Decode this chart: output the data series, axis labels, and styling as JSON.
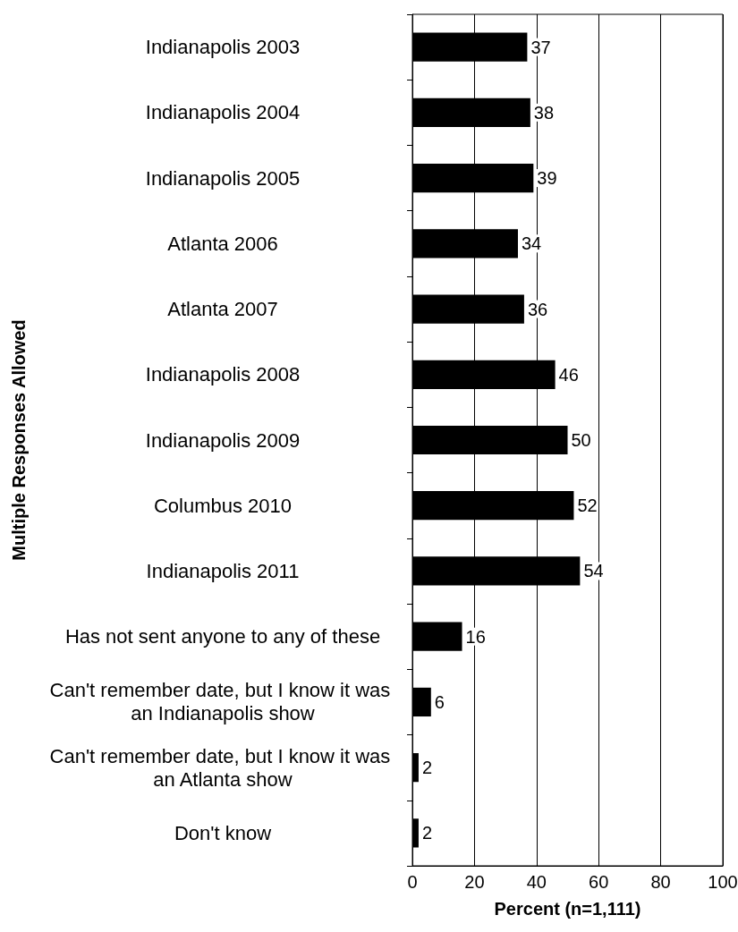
{
  "chart_data": {
    "type": "bar",
    "orientation": "horizontal",
    "xlabel": "Percent (n=1,111)",
    "ylabel": "Multiple Responses Allowed",
    "categories": [
      "Indianapolis 2003",
      "Indianapolis 2004",
      "Indianapolis 2005",
      "Atlanta 2006",
      "Atlanta 2007",
      "Indianapolis 2008",
      "Indianapolis 2009",
      "Columbus 2010",
      "Indianapolis 2011",
      "Has not sent anyone to any of these",
      "Can't remember date, but I know it was an Indianapolis show",
      "Can't remember date, but I know it was an Atlanta show",
      "Don't know"
    ],
    "values": [
      37,
      38,
      39,
      34,
      36,
      46,
      50,
      52,
      54,
      16,
      6,
      2,
      2
    ],
    "color": "#000000",
    "xlim": [
      0,
      100
    ],
    "xticks": [
      0,
      20,
      40,
      60,
      80,
      100
    ],
    "grid": "x",
    "data_labels": true
  }
}
